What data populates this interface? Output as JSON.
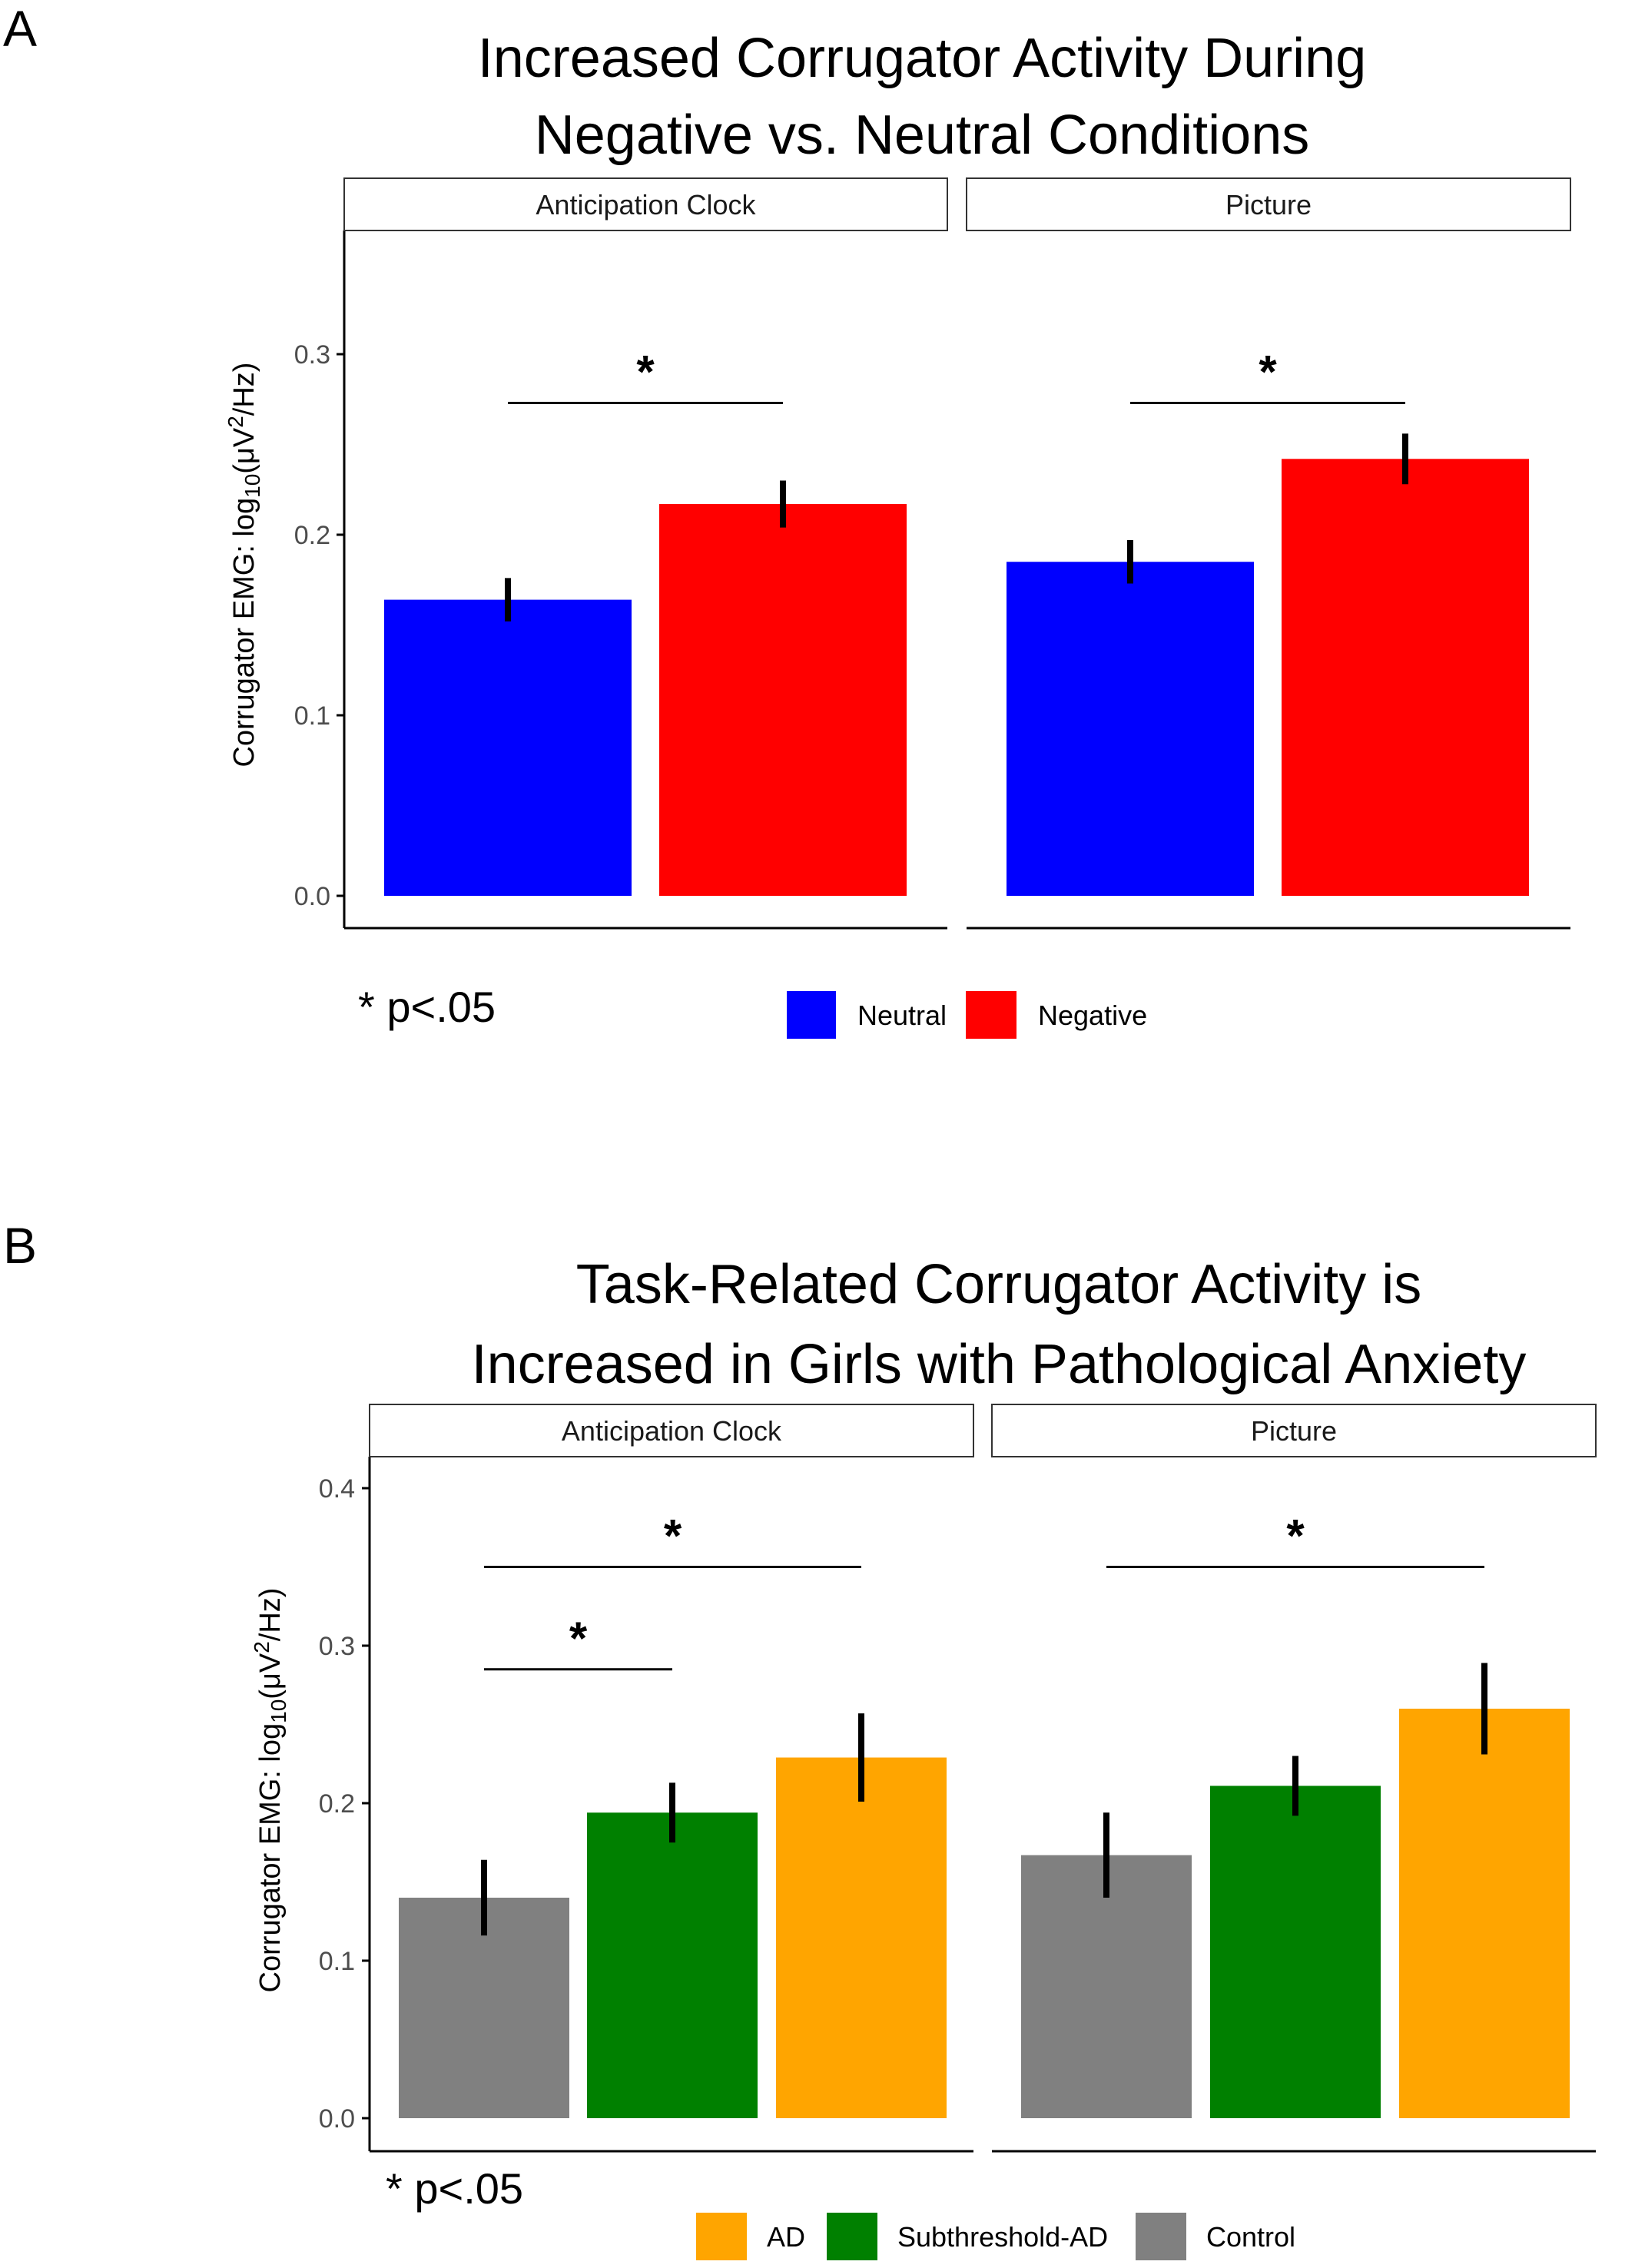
{
  "chart_data": [
    {
      "panel_letter": "A",
      "type": "bar",
      "title_lines": [
        "Increased Corrugator Activity During",
        "Negative vs. Neutral Conditions"
      ],
      "ylabel_main": "Corrugator EMG: log",
      "ylabel_sub": "10",
      "ylabel_unit": "(μV",
      "ylabel_sup": "2",
      "ylabel_tail": "/Hz)",
      "ylim": [
        0,
        0.37
      ],
      "yticks": [
        "0.0",
        "0.1",
        "0.2",
        "0.3"
      ],
      "facets": [
        "Anticipation Clock",
        "Picture"
      ],
      "groups": [
        "Neutral",
        "Negative"
      ],
      "colors": {
        "Neutral": "#0000ff",
        "Negative": "#ff0000"
      },
      "values": [
        [
          0.164,
          0.217
        ],
        [
          0.185,
          0.242
        ]
      ],
      "errors": [
        [
          0.012,
          0.013
        ],
        [
          0.012,
          0.014
        ]
      ],
      "significance": [
        {
          "facet": 0,
          "from": 0,
          "to": 1,
          "y": 0.273,
          "label": "*"
        },
        {
          "facet": 1,
          "from": 0,
          "to": 1,
          "y": 0.273,
          "label": "*"
        }
      ],
      "legend": [
        "Neutral",
        "Negative"
      ],
      "note": "* p<.05"
    },
    {
      "panel_letter": "B",
      "type": "bar",
      "title_lines": [
        "Task-Related Corrugator Activity is",
        "Increased in Girls with Pathological Anxiety"
      ],
      "ylabel_main": "Corrugator EMG: log",
      "ylabel_sub": "10",
      "ylabel_unit": "(μV",
      "ylabel_sup": "2",
      "ylabel_tail": "/Hz)",
      "ylim": [
        0,
        0.42
      ],
      "yticks": [
        "0.0",
        "0.1",
        "0.2",
        "0.3",
        "0.4"
      ],
      "facets": [
        "Anticipation Clock",
        "Picture"
      ],
      "groups": [
        "Control",
        "Subthreshold-AD",
        "AD"
      ],
      "colors": {
        "Control": "#808080",
        "Subthreshold-AD": "#008000",
        "AD": "#ffa500"
      },
      "values": [
        [
          0.14,
          0.194,
          0.229
        ],
        [
          0.167,
          0.211,
          0.26
        ]
      ],
      "errors": [
        [
          0.024,
          0.019,
          0.028
        ],
        [
          0.027,
          0.019,
          0.029
        ]
      ],
      "significance": [
        {
          "facet": 0,
          "from": 0,
          "to": 2,
          "y": 0.35,
          "label": "*"
        },
        {
          "facet": 0,
          "from": 0,
          "to": 1,
          "y": 0.285,
          "label": "*"
        },
        {
          "facet": 1,
          "from": 0,
          "to": 2,
          "y": 0.35,
          "label": "*"
        }
      ],
      "legend": [
        "AD",
        "Subthreshold-AD",
        "Control"
      ],
      "note": "* p<.05"
    }
  ]
}
